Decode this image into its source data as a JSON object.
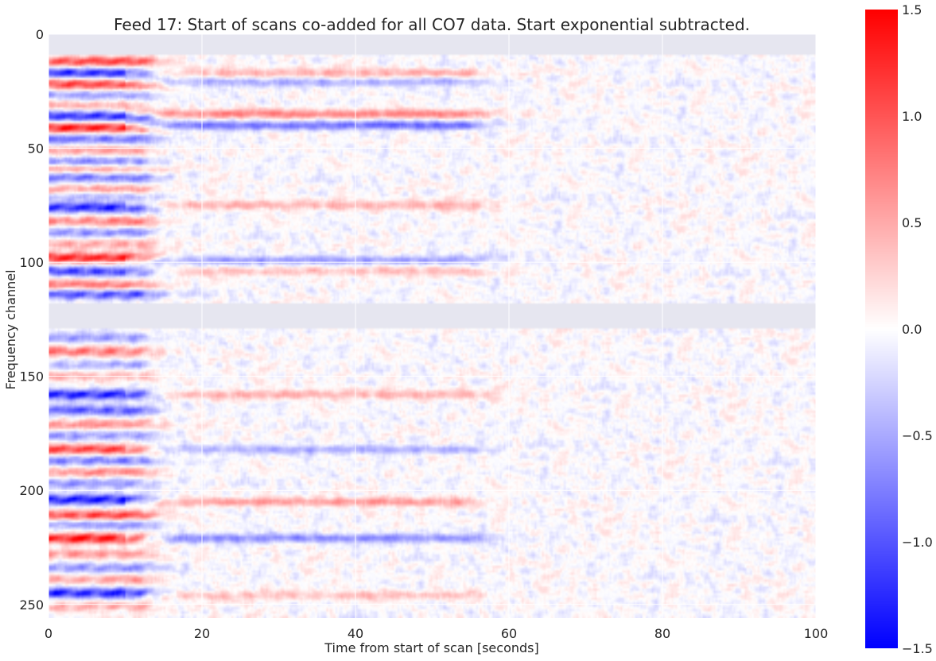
{
  "chart_data": {
    "type": "heatmap",
    "title": "Feed 17: Start of scans co-added for all CO7 data. Start exponential subtracted.",
    "xlabel": "Time from start of scan [seconds]",
    "ylabel": "Frequency channel",
    "xlim": [
      0,
      100
    ],
    "ylim": [
      256,
      0
    ],
    "x_ticks": [
      0,
      20,
      40,
      60,
      80,
      100
    ],
    "y_ticks": [
      0,
      50,
      100,
      150,
      200,
      250
    ],
    "colormap": "bwr",
    "colorbar": {
      "vmin": -1.5,
      "vmax": 1.5,
      "ticks": [
        1.5,
        1.0,
        0.5,
        0.0,
        -0.5,
        -1.0,
        -1.5
      ],
      "tick_labels": [
        "1.5",
        "1.0",
        "0.5",
        "0.0",
        "−0.5",
        "−1.0",
        "−1.5"
      ]
    },
    "grid": true,
    "masked_channel_ranges": [
      [
        0,
        9
      ],
      [
        118,
        129
      ]
    ],
    "colors": {
      "masked": "#e6e6f0",
      "low": "#0000ff",
      "mid": "#ffffff",
      "high": "#ff0000"
    },
    "features": {
      "initial_band_end_seconds": 12,
      "secondary_band_end_seconds": 55,
      "channel_profile": [
        {
          "channel": 12,
          "value": 1.2
        },
        {
          "channel": 17,
          "value": -1.4
        },
        {
          "channel": 22,
          "value": 1.3
        },
        {
          "channel": 27,
          "value": -0.6
        },
        {
          "channel": 31,
          "value": 0.5
        },
        {
          "channel": 36,
          "value": -1.4
        },
        {
          "channel": 41,
          "value": 1.5
        },
        {
          "channel": 46,
          "value": -0.9
        },
        {
          "channel": 51,
          "value": 0.6
        },
        {
          "channel": 56,
          "value": -0.7
        },
        {
          "channel": 59,
          "value": 0.6
        },
        {
          "channel": 63,
          "value": -0.9
        },
        {
          "channel": 68,
          "value": 0.7
        },
        {
          "channel": 71,
          "value": -0.5
        },
        {
          "channel": 76,
          "value": -1.4
        },
        {
          "channel": 82,
          "value": 0.8
        },
        {
          "channel": 87,
          "value": -0.7
        },
        {
          "channel": 92,
          "value": 0.6
        },
        {
          "channel": 98,
          "value": 1.5
        },
        {
          "channel": 104,
          "value": -1.2
        },
        {
          "channel": 110,
          "value": 0.9
        },
        {
          "channel": 114,
          "value": -1.2
        },
        {
          "channel": 133,
          "value": -0.6
        },
        {
          "channel": 139,
          "value": 0.9
        },
        {
          "channel": 145,
          "value": -0.5
        },
        {
          "channel": 150,
          "value": 0.5
        },
        {
          "channel": 158,
          "value": -1.5
        },
        {
          "channel": 165,
          "value": -1.0
        },
        {
          "channel": 171,
          "value": 0.7
        },
        {
          "channel": 176,
          "value": -0.6
        },
        {
          "channel": 182,
          "value": 1.3
        },
        {
          "channel": 187,
          "value": -0.8
        },
        {
          "channel": 192,
          "value": 0.7
        },
        {
          "channel": 197,
          "value": -0.7
        },
        {
          "channel": 204,
          "value": -1.5
        },
        {
          "channel": 211,
          "value": 1.2
        },
        {
          "channel": 215,
          "value": -0.7
        },
        {
          "channel": 221,
          "value": 1.5
        },
        {
          "channel": 228,
          "value": 0.6
        },
        {
          "channel": 234,
          "value": -0.7
        },
        {
          "channel": 239,
          "value": 0.6
        },
        {
          "channel": 245,
          "value": -1.4
        },
        {
          "channel": 251,
          "value": 0.5
        }
      ],
      "secondary_bands": [
        {
          "channel": 17,
          "value": 0.5
        },
        {
          "channel": 21,
          "value": -0.5
        },
        {
          "channel": 35,
          "value": 0.8
        },
        {
          "channel": 40,
          "value": -0.9
        },
        {
          "channel": 75,
          "value": 0.5
        },
        {
          "channel": 99,
          "value": -0.6
        },
        {
          "channel": 104,
          "value": 0.4
        },
        {
          "channel": 158,
          "value": 0.5
        },
        {
          "channel": 182,
          "value": -0.5
        },
        {
          "channel": 205,
          "value": 0.6
        },
        {
          "channel": 221,
          "value": -0.7
        },
        {
          "channel": 246,
          "value": 0.4
        }
      ]
    }
  }
}
